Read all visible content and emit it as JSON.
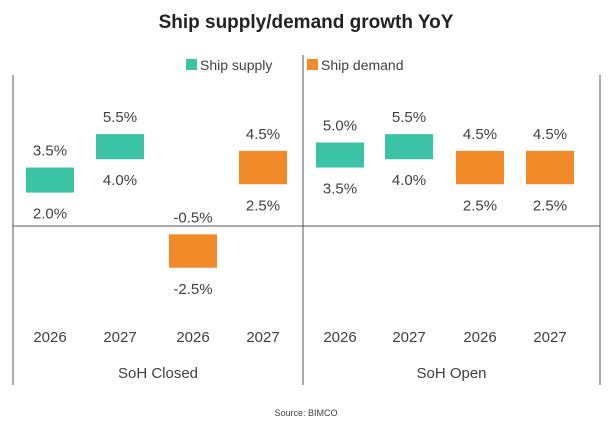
{
  "chart_data": {
    "type": "bar",
    "subtype": "floating-range",
    "title": "Ship supply/demand  growth YoY",
    "source": "Source: BIMCO",
    "legend": {
      "position": "top",
      "entries": [
        "Ship supply",
        "Ship demand"
      ]
    },
    "colors": {
      "Ship supply": "#3cc2a4",
      "Ship demand": "#f28a2a"
    },
    "groups": [
      {
        "label": "SoH Closed",
        "bars": [
          {
            "category": "2026",
            "series": "Ship supply",
            "low": 2.0,
            "high": 3.5,
            "low_label": "2.0%",
            "high_label": "3.5%"
          },
          {
            "category": "2027",
            "series": "Ship supply",
            "low": 4.0,
            "high": 5.5,
            "low_label": "4.0%",
            "high_label": "5.5%"
          },
          {
            "category": "2026",
            "series": "Ship demand",
            "low": -2.5,
            "high": -0.5,
            "low_label": "-2.5%",
            "high_label": "-0.5%"
          },
          {
            "category": "2027",
            "series": "Ship demand",
            "low": 2.5,
            "high": 4.5,
            "low_label": "2.5%",
            "high_label": "4.5%"
          }
        ]
      },
      {
        "label": "SoH Open",
        "bars": [
          {
            "category": "2026",
            "series": "Ship supply",
            "low": 3.5,
            "high": 5.0,
            "low_label": "3.5%",
            "high_label": "5.0%"
          },
          {
            "category": "2027",
            "series": "Ship supply",
            "low": 4.0,
            "high": 5.5,
            "low_label": "4.0%",
            "high_label": "5.5%"
          },
          {
            "category": "2026",
            "series": "Ship demand",
            "low": 2.5,
            "high": 4.5,
            "low_label": "2.5%",
            "high_label": "4.5%"
          },
          {
            "category": "2027",
            "series": "Ship demand",
            "low": 2.5,
            "high": 4.5,
            "low_label": "2.5%",
            "high_label": "4.5%"
          }
        ]
      }
    ],
    "grid": false
  }
}
